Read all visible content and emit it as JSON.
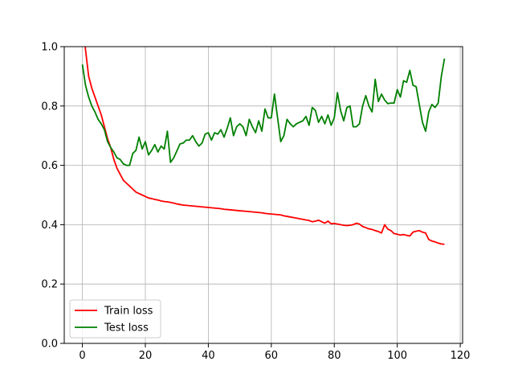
{
  "chart_data": {
    "type": "line",
    "title": "",
    "xlabel": "",
    "ylabel": "",
    "xlim": [
      -5.75,
      120.75
    ],
    "ylim": [
      0.0,
      1.0
    ],
    "xticks": [
      0,
      20,
      40,
      60,
      80,
      100,
      120
    ],
    "yticks": [
      0.0,
      0.2,
      0.4,
      0.6,
      0.8,
      1.0
    ],
    "xtick_labels": [
      "0",
      "20",
      "40",
      "60",
      "80",
      "100",
      "120"
    ],
    "ytick_labels": [
      "0.0",
      "0.2",
      "0.4",
      "0.6",
      "0.8",
      "1.0"
    ],
    "grid": true,
    "legend_position": "lower-left",
    "series": [
      {
        "name": "Train loss",
        "color": "#ff0000",
        "x": [
          0,
          1,
          2,
          3,
          4,
          5,
          6,
          7,
          8,
          9,
          10,
          11,
          12,
          13,
          14,
          15,
          16,
          17,
          18,
          19,
          20,
          21,
          22,
          23,
          24,
          25,
          26,
          27,
          28,
          29,
          30,
          31,
          32,
          33,
          34,
          35,
          36,
          37,
          38,
          39,
          40,
          41,
          42,
          43,
          44,
          45,
          46,
          47,
          48,
          49,
          50,
          51,
          52,
          53,
          54,
          55,
          56,
          57,
          58,
          59,
          60,
          61,
          62,
          63,
          64,
          65,
          66,
          67,
          68,
          69,
          70,
          71,
          72,
          73,
          74,
          75,
          76,
          77,
          78,
          79,
          80,
          81,
          82,
          83,
          84,
          85,
          86,
          87,
          88,
          89,
          90,
          91,
          92,
          93,
          94,
          95,
          96,
          97,
          98,
          99,
          100,
          101,
          102,
          103,
          104,
          105,
          106,
          107,
          108,
          109,
          110,
          111,
          112,
          113,
          114,
          115
        ],
        "values": [
          1.12,
          0.99,
          0.9,
          0.86,
          0.83,
          0.8,
          0.77,
          0.73,
          0.69,
          0.66,
          0.62,
          0.59,
          0.57,
          0.55,
          0.54,
          0.53,
          0.52,
          0.51,
          0.505,
          0.5,
          0.495,
          0.49,
          0.488,
          0.485,
          0.483,
          0.48,
          0.478,
          0.477,
          0.475,
          0.473,
          0.47,
          0.468,
          0.466,
          0.465,
          0.464,
          0.463,
          0.462,
          0.461,
          0.46,
          0.459,
          0.458,
          0.457,
          0.456,
          0.455,
          0.454,
          0.452,
          0.451,
          0.45,
          0.449,
          0.448,
          0.447,
          0.446,
          0.445,
          0.444,
          0.443,
          0.442,
          0.441,
          0.44,
          0.438,
          0.437,
          0.436,
          0.435,
          0.434,
          0.433,
          0.43,
          0.428,
          0.426,
          0.424,
          0.422,
          0.42,
          0.418,
          0.416,
          0.414,
          0.41,
          0.412,
          0.415,
          0.41,
          0.405,
          0.412,
          0.403,
          0.404,
          0.402,
          0.4,
          0.398,
          0.397,
          0.398,
          0.4,
          0.405,
          0.402,
          0.394,
          0.39,
          0.386,
          0.384,
          0.38,
          0.377,
          0.372,
          0.4,
          0.385,
          0.38,
          0.37,
          0.368,
          0.365,
          0.367,
          0.364,
          0.362,
          0.375,
          0.378,
          0.38,
          0.375,
          0.372,
          0.35,
          0.345,
          0.342,
          0.338,
          0.335,
          0.334
        ]
      },
      {
        "name": "Test loss",
        "color": "#008000",
        "x": [
          0,
          1,
          2,
          3,
          4,
          5,
          6,
          7,
          8,
          9,
          10,
          11,
          12,
          13,
          14,
          15,
          16,
          17,
          18,
          19,
          20,
          21,
          22,
          23,
          24,
          25,
          26,
          27,
          28,
          29,
          30,
          31,
          32,
          33,
          34,
          35,
          36,
          37,
          38,
          39,
          40,
          41,
          42,
          43,
          44,
          45,
          46,
          47,
          48,
          49,
          50,
          51,
          52,
          53,
          54,
          55,
          56,
          57,
          58,
          59,
          60,
          61,
          62,
          63,
          64,
          65,
          66,
          67,
          68,
          69,
          70,
          71,
          72,
          73,
          74,
          75,
          76,
          77,
          78,
          79,
          80,
          81,
          82,
          83,
          84,
          85,
          86,
          87,
          88,
          89,
          90,
          91,
          92,
          93,
          94,
          95,
          96,
          97,
          98,
          99,
          100,
          101,
          102,
          103,
          104,
          105,
          106,
          107,
          108,
          109,
          110,
          111,
          112,
          113,
          114,
          115
        ],
        "values": [
          0.94,
          0.87,
          0.83,
          0.8,
          0.78,
          0.755,
          0.74,
          0.72,
          0.68,
          0.66,
          0.645,
          0.625,
          0.62,
          0.605,
          0.6,
          0.6,
          0.64,
          0.65,
          0.695,
          0.655,
          0.68,
          0.635,
          0.65,
          0.67,
          0.645,
          0.665,
          0.655,
          0.715,
          0.61,
          0.625,
          0.648,
          0.672,
          0.675,
          0.685,
          0.685,
          0.7,
          0.68,
          0.665,
          0.675,
          0.705,
          0.71,
          0.685,
          0.71,
          0.705,
          0.72,
          0.695,
          0.725,
          0.76,
          0.7,
          0.73,
          0.74,
          0.73,
          0.7,
          0.755,
          0.73,
          0.71,
          0.75,
          0.715,
          0.79,
          0.76,
          0.76,
          0.84,
          0.76,
          0.68,
          0.7,
          0.755,
          0.74,
          0.73,
          0.74,
          0.745,
          0.75,
          0.765,
          0.735,
          0.795,
          0.785,
          0.745,
          0.765,
          0.74,
          0.77,
          0.735,
          0.76,
          0.845,
          0.785,
          0.75,
          0.795,
          0.8,
          0.73,
          0.73,
          0.74,
          0.8,
          0.835,
          0.8,
          0.78,
          0.89,
          0.815,
          0.84,
          0.82,
          0.808,
          0.81,
          0.81,
          0.855,
          0.83,
          0.885,
          0.88,
          0.92,
          0.87,
          0.865,
          0.805,
          0.745,
          0.715,
          0.78,
          0.805,
          0.795,
          0.81,
          0.9,
          0.96
        ]
      }
    ]
  }
}
